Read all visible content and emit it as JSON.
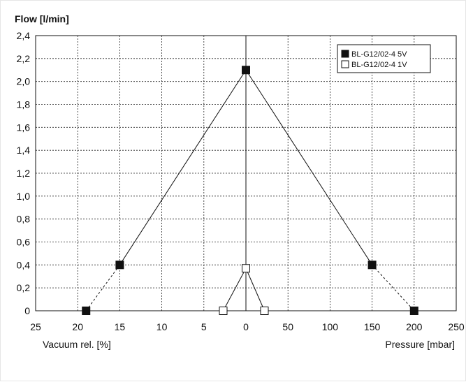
{
  "chart_data": {
    "type": "line",
    "title": "Flow [l/min]",
    "xlabel_left": "Vacuum rel. [%]",
    "xlabel_right": "Pressure [mbar]",
    "y_ticks": [
      "0",
      "0,2",
      "0,4",
      "0,6",
      "0,8",
      "1,0",
      "1,2",
      "1,4",
      "1,6",
      "1,8",
      "2,0",
      "2,2",
      "2,4"
    ],
    "x_ticks": [
      "25",
      "20",
      "15",
      "10",
      "5",
      "0",
      "50",
      "100",
      "150",
      "200",
      "250"
    ],
    "ylim": [
      0,
      2.4
    ],
    "grid": true,
    "legend_position": "top-right",
    "legend": [
      "BL-G12/02-4 5V",
      "BL-G12/02-4 1V"
    ],
    "series": [
      {
        "name": "BL-G12/02-4 5V",
        "marker": "filled-square",
        "color": "#111111",
        "points": [
          {
            "side": "vacuum",
            "x": 19,
            "y": 0
          },
          {
            "side": "vacuum",
            "x": 15,
            "y": 0.4
          },
          {
            "side": "center",
            "x": 0,
            "y": 2.1
          },
          {
            "side": "pressure",
            "x": 150,
            "y": 0.4
          },
          {
            "side": "pressure",
            "x": 200,
            "y": 0
          }
        ]
      },
      {
        "name": "BL-G12/02-4 1V",
        "marker": "open-square",
        "color": "#111111",
        "points": [
          {
            "side": "vacuum",
            "x": 2.7,
            "y": 0
          },
          {
            "side": "center",
            "x": 0,
            "y": 0.37
          },
          {
            "side": "pressure",
            "x": 22,
            "y": 0
          }
        ]
      }
    ]
  }
}
